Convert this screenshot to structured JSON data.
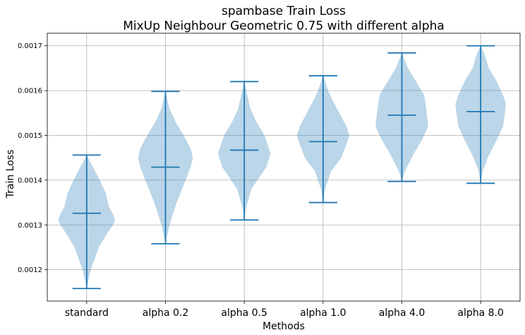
{
  "chart_data": {
    "type": "violin",
    "title": [
      "spambase Train Loss",
      "MixUp Neighbour Geometric 0.75 with different alpha"
    ],
    "xlabel": "Methods",
    "ylabel": "Train Loss",
    "categories": [
      "standard",
      "alpha 0.2",
      "alpha 0.5",
      "alpha 1.0",
      "alpha 4.0",
      "alpha 8.0"
    ],
    "ylim": [
      0.00113,
      0.001728
    ],
    "yticks": [
      0.0012,
      0.0013,
      0.0014,
      0.0015,
      0.0016,
      0.0017
    ],
    "ytick_labels": [
      "0.0012",
      "0.0013",
      "0.0014",
      "0.0015",
      "0.0016",
      "0.0017"
    ],
    "grid": true,
    "colors": {
      "body": "#1f77b4",
      "line": "#1f77b4"
    },
    "violins": [
      {
        "min": 0.001158,
        "mean": 0.001326,
        "max": 0.001456,
        "profile": [
          [
            0.001158,
            0
          ],
          [
            0.00118,
            0.002
          ],
          [
            0.0012,
            0.004
          ],
          [
            0.00125,
            0.012
          ],
          [
            0.00128,
            0.02
          ],
          [
            0.0013,
            0.026
          ],
          [
            0.00131,
            0.028
          ],
          [
            0.00132,
            0.027
          ],
          [
            0.00134,
            0.022
          ],
          [
            0.00137,
            0.019
          ],
          [
            0.0014,
            0.013
          ],
          [
            0.00143,
            0.006
          ],
          [
            0.001456,
            0
          ]
        ]
      },
      {
        "min": 0.001258,
        "mean": 0.001429,
        "max": 0.001598,
        "profile": [
          [
            0.001258,
            0
          ],
          [
            0.00128,
            0.002
          ],
          [
            0.0013,
            0.004
          ],
          [
            0.00135,
            0.011
          ],
          [
            0.0014,
            0.02
          ],
          [
            0.00143,
            0.025
          ],
          [
            0.00145,
            0.027
          ],
          [
            0.00147,
            0.025
          ],
          [
            0.0015,
            0.018
          ],
          [
            0.00153,
            0.01
          ],
          [
            0.00156,
            0.004
          ],
          [
            0.001598,
            0
          ]
        ]
      },
      {
        "min": 0.001311,
        "mean": 0.001467,
        "max": 0.00162,
        "profile": [
          [
            0.001311,
            0
          ],
          [
            0.00134,
            0.002
          ],
          [
            0.00138,
            0.007
          ],
          [
            0.0014,
            0.013
          ],
          [
            0.00143,
            0.022
          ],
          [
            0.00146,
            0.026
          ],
          [
            0.00148,
            0.023
          ],
          [
            0.0015,
            0.02
          ],
          [
            0.00153,
            0.012
          ],
          [
            0.00156,
            0.006
          ],
          [
            0.0016,
            0.002
          ],
          [
            0.00162,
            0
          ]
        ]
      },
      {
        "min": 0.00135,
        "mean": 0.001486,
        "max": 0.001633,
        "profile": [
          [
            0.00135,
            0
          ],
          [
            0.00138,
            0.002
          ],
          [
            0.00142,
            0.008
          ],
          [
            0.00145,
            0.018
          ],
          [
            0.00148,
            0.023
          ],
          [
            0.0015,
            0.026
          ],
          [
            0.00152,
            0.023
          ],
          [
            0.00155,
            0.016
          ],
          [
            0.00158,
            0.009
          ],
          [
            0.0016,
            0.005
          ],
          [
            0.001633,
            0
          ]
        ]
      },
      {
        "min": 0.001397,
        "mean": 0.001545,
        "max": 0.001684,
        "profile": [
          [
            0.001397,
            0
          ],
          [
            0.00142,
            0.003
          ],
          [
            0.00146,
            0.012
          ],
          [
            0.00149,
            0.02
          ],
          [
            0.00152,
            0.026
          ],
          [
            0.00154,
            0.025
          ],
          [
            0.00156,
            0.024
          ],
          [
            0.00159,
            0.022
          ],
          [
            0.00162,
            0.014
          ],
          [
            0.00165,
            0.006
          ],
          [
            0.001684,
            0
          ]
        ]
      },
      {
        "min": 0.001393,
        "mean": 0.001553,
        "max": 0.0017,
        "profile": [
          [
            0.001393,
            0
          ],
          [
            0.00142,
            0.002
          ],
          [
            0.00145,
            0.007
          ],
          [
            0.00149,
            0.016
          ],
          [
            0.00152,
            0.022
          ],
          [
            0.00155,
            0.024
          ],
          [
            0.00157,
            0.025
          ],
          [
            0.00159,
            0.022
          ],
          [
            0.00162,
            0.016
          ],
          [
            0.00165,
            0.008
          ],
          [
            0.00168,
            0.004
          ],
          [
            0.0017,
            0
          ]
        ]
      }
    ]
  }
}
